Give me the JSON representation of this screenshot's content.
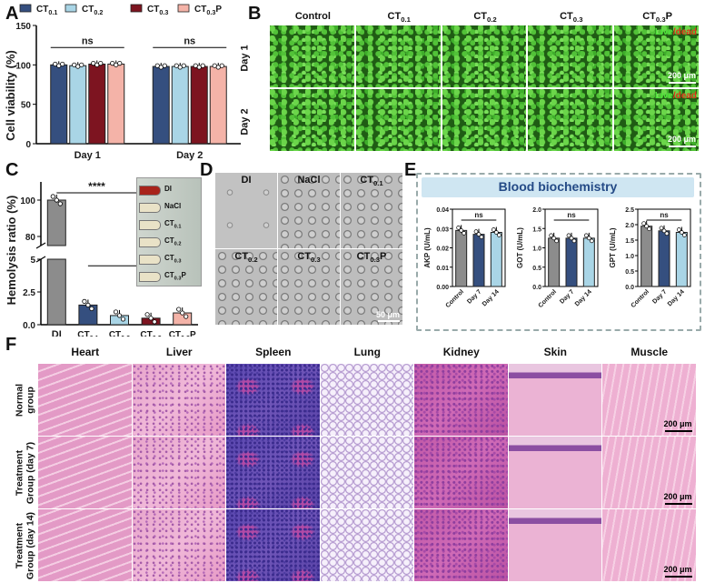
{
  "panels": {
    "A": "A",
    "B": "B",
    "C": "C",
    "D": "D",
    "E": "E",
    "F": "F"
  },
  "panelA": {
    "ylabel": "Cell viability (%)",
    "legend": [
      {
        "sub": "0.1",
        "color": "#354f7f"
      },
      {
        "sub": "0.2",
        "color": "#a9d5e6"
      },
      {
        "sub": "0.3",
        "color": "#7d1420"
      },
      {
        "sub": "0.3",
        "suffix": "P",
        "color": "#f4b3a8"
      }
    ],
    "ns_labels": [
      "ns",
      "ns"
    ]
  },
  "panelB": {
    "columns": [
      "Control",
      "0.1",
      "0.2",
      "0.3",
      "0.3"
    ],
    "col_suffix": [
      "",
      "",
      "",
      "",
      "P"
    ],
    "rows": [
      "Day 1",
      "Day 2"
    ],
    "live": "Live",
    "dead": "/dead",
    "scale": "200 μm"
  },
  "panelC": {
    "ylabel": "Hemolysis ratio (%)",
    "sig": "****",
    "categories": [
      "DI",
      "0.1",
      "0.2",
      "0.3",
      "0.3"
    ],
    "cat_suffix": [
      "",
      "",
      "",
      "",
      "P"
    ],
    "inset_labels": [
      "DI",
      "NaCl",
      "0.1",
      "0.2",
      "0.3",
      "0.3"
    ],
    "inset_suffix": [
      "",
      "",
      "",
      "",
      "",
      "P"
    ]
  },
  "panelD": {
    "labels": [
      "DI",
      "NaCl",
      "0.1",
      "0.2",
      "0.3",
      "0.3"
    ],
    "suffix": [
      "",
      "",
      "",
      "",
      "",
      "P"
    ],
    "scale": "50 μm"
  },
  "panelE": {
    "title": "Blood biochemistry",
    "charts": [
      {
        "ylabel": "AKP (U/mL)",
        "yticks": [
          "0.00",
          "0.01",
          "0.02",
          "0.03",
          "0.04"
        ],
        "ns": "ns"
      },
      {
        "ylabel": "GOT (U/mL)",
        "yticks": [
          "0.0",
          "0.5",
          "1.0",
          "1.5",
          "2.0"
        ],
        "ns": "ns"
      },
      {
        "ylabel": "GPT (U/mL)",
        "yticks": [
          "0.0",
          "0.5",
          "1.0",
          "1.5",
          "2.0",
          "2.5"
        ],
        "ns": "ns"
      }
    ],
    "xcats": [
      "Control",
      "Day 7",
      "Day 14"
    ]
  },
  "panelF": {
    "columns": [
      "Heart",
      "Liver",
      "Spleen",
      "Lung",
      "Kidney",
      "Skin",
      "Muscle"
    ],
    "rows": [
      [
        "Normal",
        "group"
      ],
      [
        "Treatment",
        "Group (day 7)"
      ],
      [
        "Treatment",
        "Group (day 14)"
      ]
    ],
    "scale": "200 μm"
  },
  "chart_data": [
    {
      "type": "bar",
      "id": "A",
      "title": "",
      "ylabel": "Cell viability (%)",
      "categories": [
        "Day 1",
        "Day 2"
      ],
      "ylim": [
        0,
        150
      ],
      "yticks": [
        0,
        50,
        100,
        150
      ],
      "series": [
        {
          "name": "CT0.1",
          "values": [
            100,
            98
          ],
          "color": "#354f7f"
        },
        {
          "name": "CT0.2",
          "values": [
            99,
            98
          ],
          "color": "#a9d5e6"
        },
        {
          "name": "CT0.3",
          "values": [
            101,
            98
          ],
          "color": "#7d1420"
        },
        {
          "name": "CT0.3P",
          "values": [
            101,
            98
          ],
          "color": "#f4b3a8"
        }
      ],
      "annotations": [
        "ns",
        "ns"
      ]
    },
    {
      "type": "bar",
      "id": "C",
      "ylabel": "Hemolysis ratio (%)",
      "categories": [
        "DI",
        "CT0.1",
        "CT0.2",
        "CT0.3",
        "CT0.3P"
      ],
      "values": [
        100,
        1.5,
        0.7,
        0.5,
        0.9
      ],
      "colors": [
        "#8c8c8c",
        "#354f7f",
        "#a9d5e6",
        "#7d1420",
        "#f4b3a8"
      ],
      "yaxis_break": [
        5,
        75
      ],
      "yticks": [
        0.0,
        2.5,
        5.0,
        80,
        100
      ],
      "annotations": [
        "****"
      ]
    },
    {
      "type": "bar",
      "id": "E-AKP",
      "ylabel": "AKP (U/mL)",
      "categories": [
        "Control",
        "Day 7",
        "Day 14"
      ],
      "values": [
        0.029,
        0.027,
        0.028
      ],
      "ylim": [
        0,
        0.04
      ],
      "colors": [
        "#8c8c8c",
        "#354f7f",
        "#a9d5e6"
      ],
      "annotations": [
        "ns"
      ]
    },
    {
      "type": "bar",
      "id": "E-GOT",
      "ylabel": "GOT (U/mL)",
      "categories": [
        "Control",
        "Day 7",
        "Day 14"
      ],
      "values": [
        1.25,
        1.25,
        1.25
      ],
      "ylim": [
        0,
        2.0
      ],
      "colors": [
        "#8c8c8c",
        "#354f7f",
        "#a9d5e6"
      ],
      "annotations": [
        "ns"
      ]
    },
    {
      "type": "bar",
      "id": "E-GPT",
      "ylabel": "GPT (U/mL)",
      "categories": [
        "Control",
        "Day 7",
        "Day 14"
      ],
      "values": [
        1.95,
        1.8,
        1.75
      ],
      "ylim": [
        0,
        2.5
      ],
      "colors": [
        "#8c8c8c",
        "#354f7f",
        "#a9d5e6"
      ],
      "annotations": [
        "ns"
      ]
    }
  ]
}
